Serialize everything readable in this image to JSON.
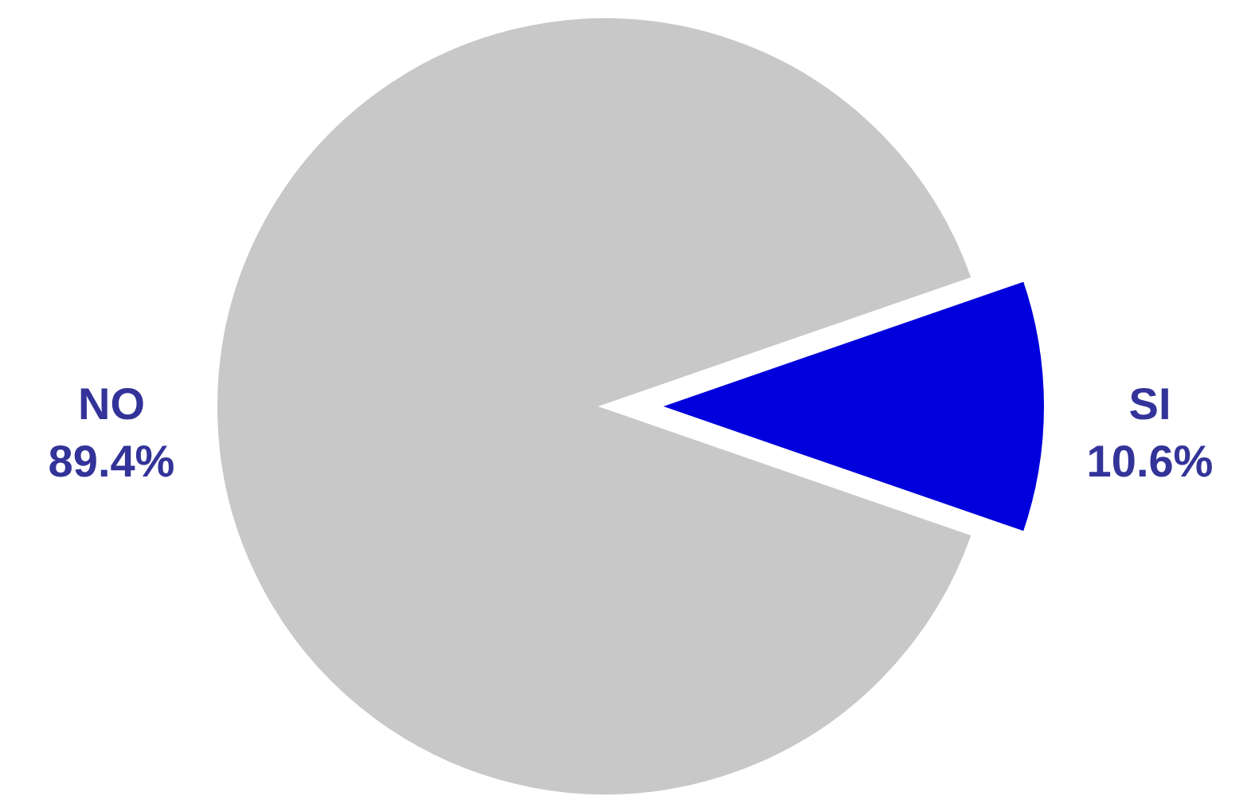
{
  "chart_data": {
    "type": "pie",
    "categories": [
      "NO",
      "SI"
    ],
    "values": [
      89.4,
      10.6
    ],
    "colors": [
      "#c8c8c8",
      "#0000dd"
    ],
    "value_labels": [
      "89.4%",
      "10.6%"
    ]
  }
}
